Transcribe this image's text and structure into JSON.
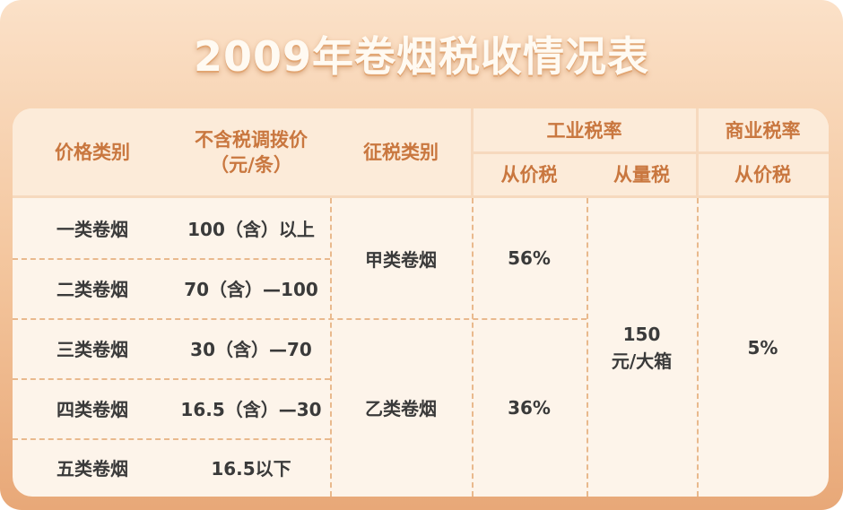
{
  "title": "2009年卷烟税收情况表",
  "headers": {
    "category": "价格类别",
    "price_line1": "不含税调拨价",
    "price_line2": "（元/条）",
    "tax_class": "征税类别",
    "industrial": "工业税率",
    "commercial": "商业税率",
    "ad_valorem": "从价税",
    "specific": "从量税",
    "commercial_ad_valorem": "从价税"
  },
  "rows": [
    {
      "category": "一类卷烟",
      "price": "100（含）以上"
    },
    {
      "category": "二类卷烟",
      "price": "70（含）—100"
    },
    {
      "category": "三类卷烟",
      "price": "30（含）—70"
    },
    {
      "category": "四类卷烟",
      "price": "16.5（含）—30"
    },
    {
      "category": "五类卷烟",
      "price": "16.5以下"
    }
  ],
  "groups": [
    {
      "tax_class": "甲类卷烟",
      "ad_valorem": "56%"
    },
    {
      "tax_class": "乙类卷烟",
      "ad_valorem": "36%"
    }
  ],
  "specific_tax_line1": "150",
  "specific_tax_line2": "元/大箱",
  "commercial_rate": "5%",
  "colors": {
    "header_text": "#c9773f",
    "title_text": "#fffaf2",
    "background": "#f3c49b",
    "card": "#fdf4ea"
  }
}
